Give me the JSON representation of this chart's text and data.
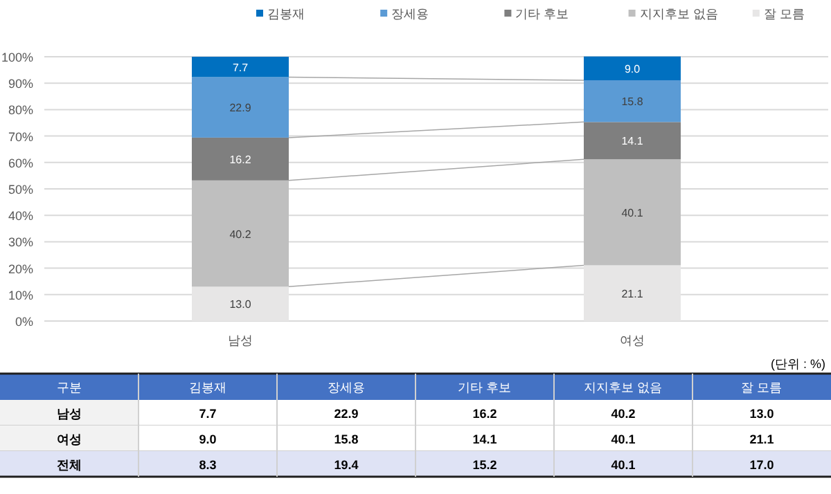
{
  "chart_data": [
    {
      "type": "bar",
      "stacked": true,
      "categories": [
        "남성",
        "여성"
      ],
      "ylim": [
        0,
        100
      ],
      "yticks": [
        {
          "value": 0,
          "label": "0%"
        },
        {
          "value": 10,
          "label": "10%"
        },
        {
          "value": 20,
          "label": "20%"
        },
        {
          "value": 30,
          "label": "30%"
        },
        {
          "value": 40,
          "label": "40%"
        },
        {
          "value": 50,
          "label": "50%"
        },
        {
          "value": 60,
          "label": "60%"
        },
        {
          "value": 70,
          "label": "70%"
        },
        {
          "value": 80,
          "label": "80%"
        },
        {
          "value": 90,
          "label": "90%"
        },
        {
          "value": 100,
          "label": "100%"
        }
      ],
      "grid": "y",
      "legend": "top",
      "series": [
        {
          "name": "잘 모름",
          "color": "#e7e6e6",
          "values": [
            13.0,
            21.1
          ],
          "value_labels": [
            "13.0",
            "21.1"
          ]
        },
        {
          "name": "지지후보 없음",
          "color": "#bfbfbf",
          "values": [
            40.2,
            40.1
          ],
          "value_labels": [
            "40.2",
            "40.1"
          ]
        },
        {
          "name": "기타 후보",
          "color": "#7f7f7f",
          "values": [
            16.2,
            14.1
          ],
          "value_labels": [
            "16.2",
            "14.1"
          ]
        },
        {
          "name": "장세용",
          "color": "#5b9bd5",
          "values": [
            22.9,
            15.8
          ],
          "value_labels": [
            "22.9",
            "15.8"
          ]
        },
        {
          "name": "김봉재",
          "color": "#0070c0",
          "values": [
            7.7,
            9.0
          ],
          "value_labels": [
            "7.7",
            "9.0"
          ]
        }
      ]
    },
    {
      "type": "other",
      "annotations": [
        "구분",
        "(단위 : %)"
      ],
      "categories": [
        "김봉재",
        "장세용",
        "기타 후보",
        "지지후보 없음",
        "잘 모름"
      ],
      "y_categories": [
        "남성",
        "여성",
        "전체"
      ],
      "cell_labels": [
        [
          "7.7",
          "22.9",
          "16.2",
          "40.2",
          "13.0"
        ],
        [
          "9.0",
          "15.8",
          "14.1",
          "40.1",
          "21.1"
        ],
        [
          "8.3",
          "19.4",
          "15.2",
          "40.1",
          "17.0"
        ]
      ]
    }
  ]
}
